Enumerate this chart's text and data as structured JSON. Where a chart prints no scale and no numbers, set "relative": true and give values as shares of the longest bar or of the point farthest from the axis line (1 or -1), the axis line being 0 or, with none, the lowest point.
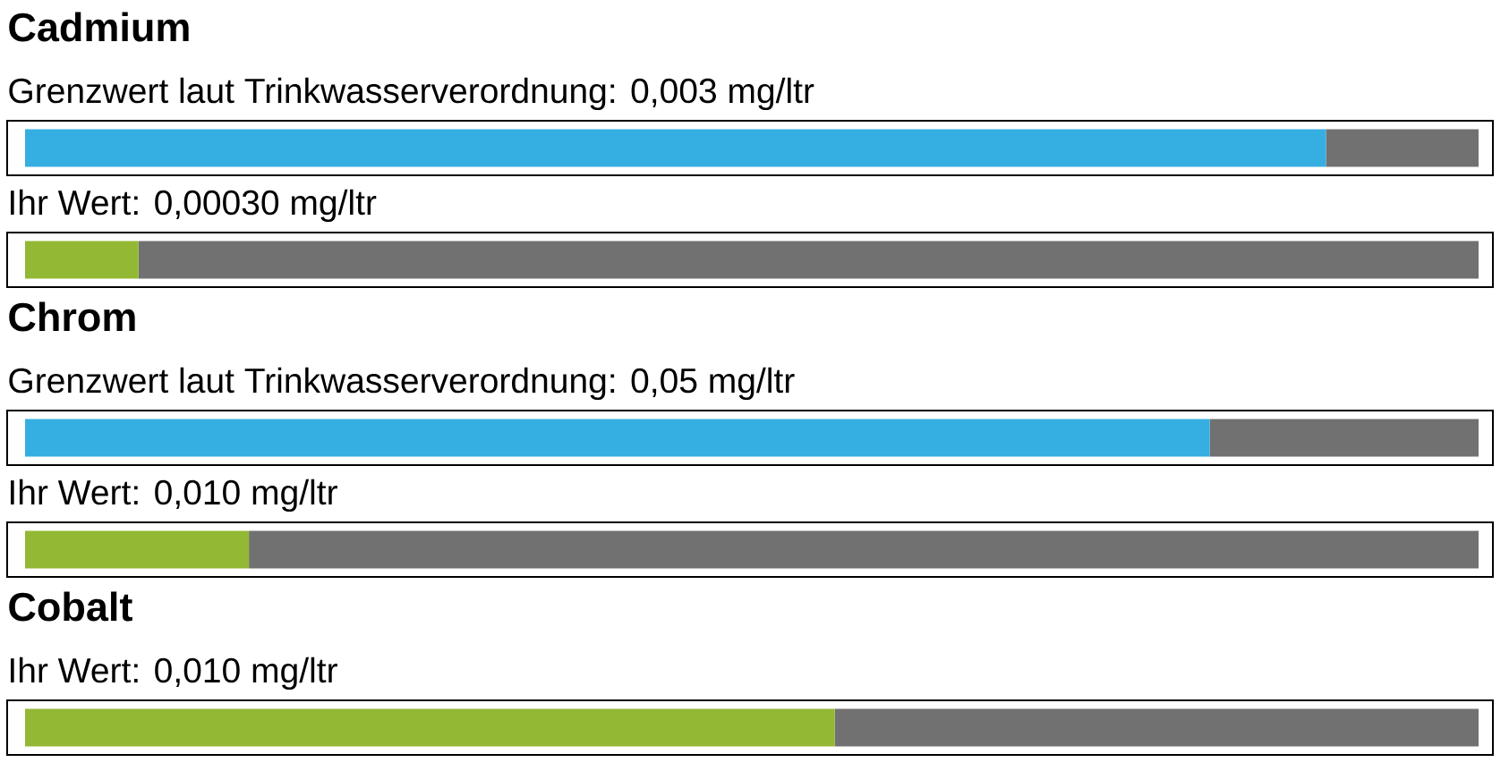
{
  "chart_data": [
    {
      "type": "bar",
      "orientation": "horizontal",
      "stacked": true,
      "relative": true,
      "title": "Cadmium",
      "categories": [
        "Grenzwert laut Trinkwasserverordnung: 0,003 mg/ltr",
        "Ihr Wert: 0,00030 mg/ltr"
      ],
      "series": [
        {
          "colors": [
            "#35aee1",
            "#93b833"
          ],
          "values": [
            0.895,
            0.078
          ]
        },
        {
          "color": "#717171",
          "values": [
            0.105,
            0.922
          ]
        }
      ]
    },
    {
      "type": "bar",
      "orientation": "horizontal",
      "stacked": true,
      "relative": true,
      "title": "Chrom",
      "categories": [
        "Grenzwert laut Trinkwasserverordnung: 0,05 mg/ltr",
        "Ihr Wert: 0,010 mg/ltr"
      ],
      "series": [
        {
          "colors": [
            "#35aee1",
            "#93b833"
          ],
          "values": [
            0.815,
            0.154
          ]
        },
        {
          "color": "#717171",
          "values": [
            0.185,
            0.846
          ]
        }
      ]
    },
    {
      "type": "bar",
      "orientation": "horizontal",
      "stacked": true,
      "relative": true,
      "title": "Cobalt",
      "categories": [
        "Ihr Wert: 0,010 mg/ltr"
      ],
      "series": [
        {
          "colors": [
            "#93b833"
          ],
          "values": [
            0.557
          ]
        },
        {
          "color": "#717171",
          "values": [
            0.443
          ]
        }
      ]
    }
  ]
}
